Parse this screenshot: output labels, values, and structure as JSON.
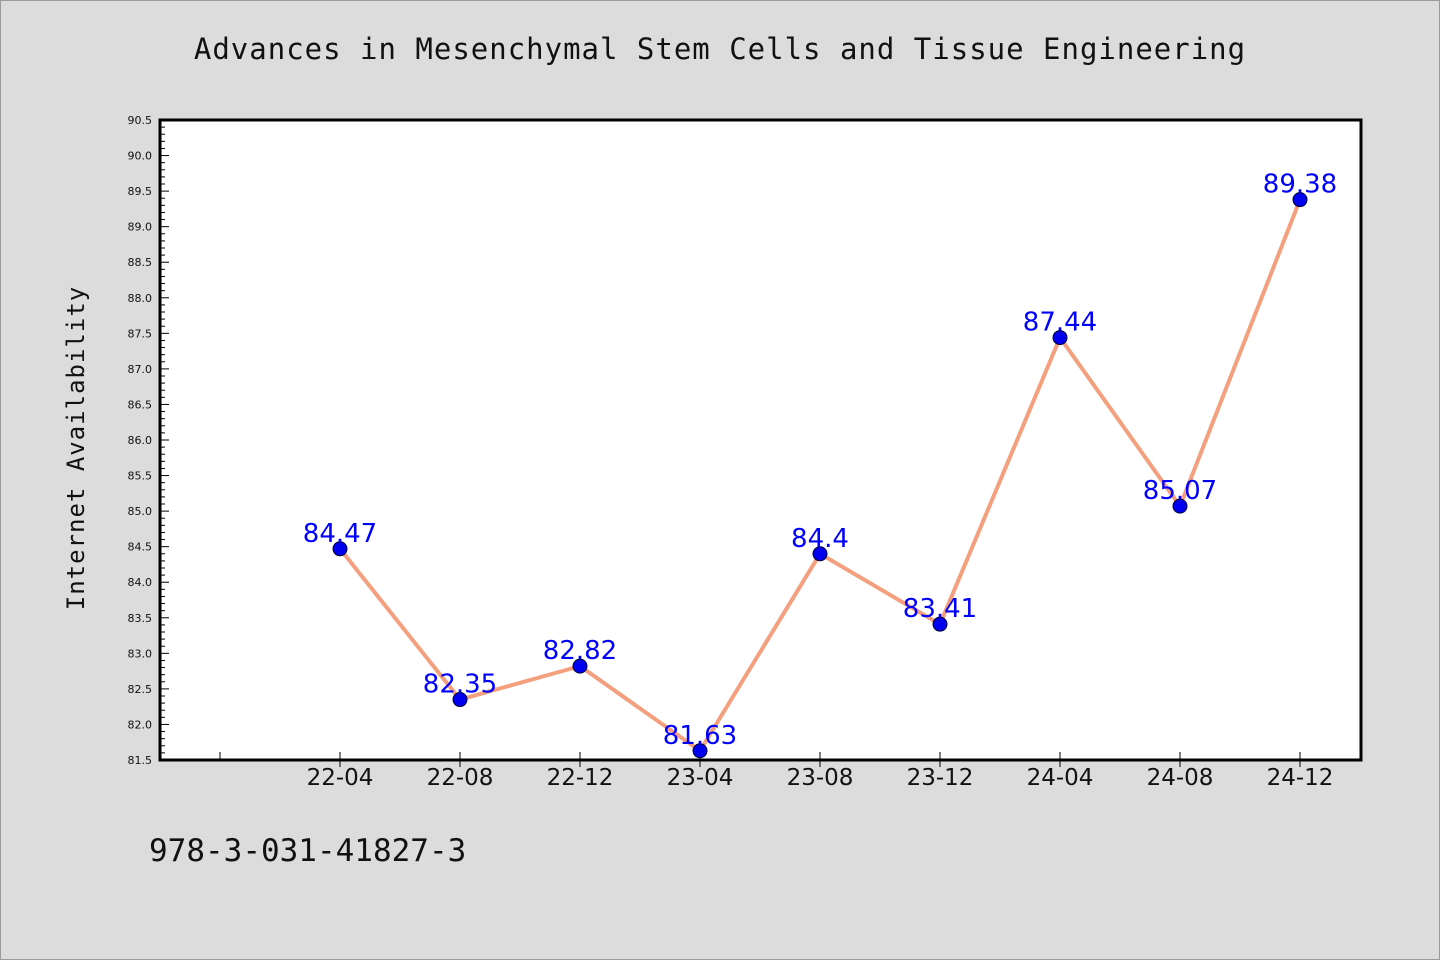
{
  "chart_data": {
    "type": "line",
    "title": "Advances in Mesenchymal Stem Cells and Tissue Engineering",
    "xlabel": "",
    "ylabel": "Internet Availability",
    "categories": [
      "22-04",
      "22-08",
      "22-12",
      "23-04",
      "23-08",
      "23-12",
      "24-04",
      "24-08",
      "24-12"
    ],
    "values": [
      84.47,
      82.35,
      82.82,
      81.63,
      84.4,
      83.41,
      87.44,
      85.07,
      89.38
    ],
    "data_labels": [
      "84.47",
      "82.35",
      "82.82",
      "81.63",
      "84.4",
      "83.41",
      "87.44",
      "85.07",
      "89.38"
    ],
    "ylim": [
      81.5,
      90.5
    ],
    "ytick_step": 0.5,
    "yticks": [
      "81.5",
      "82.0",
      "82.5",
      "83.0",
      "83.5",
      "84.0",
      "84.5",
      "85.0",
      "85.5",
      "86.0",
      "86.5",
      "87.0",
      "87.5",
      "88.0",
      "88.5",
      "89.0",
      "89.5",
      "90.0",
      "90.5"
    ],
    "grid": false,
    "colors": {
      "line": "#f4a07e",
      "marker": "#0000ee",
      "label": "#0000ff",
      "background": "#dcdcdc",
      "plot_background": "#ffffff"
    }
  },
  "footer": {
    "isbn": "978-3-031-41827-3"
  }
}
